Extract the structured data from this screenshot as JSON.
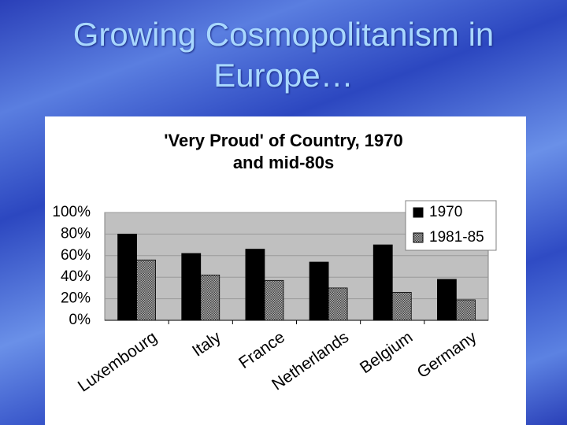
{
  "slide_title": "Growing Cosmopolitanism in Europe…",
  "chart_data": {
    "type": "bar",
    "title": "'Very Proud' of Country, 1970 and mid-80s",
    "categories": [
      "Luxembourg",
      "Italy",
      "France",
      "Netherlands",
      "Belgium",
      "Germany"
    ],
    "series": [
      {
        "name": "1970",
        "color": "#000000",
        "values": [
          80,
          62,
          66,
          54,
          70,
          38
        ]
      },
      {
        "name": "1981-85",
        "color": "#808080",
        "values": [
          56,
          42,
          37,
          30,
          26,
          19
        ]
      }
    ],
    "ylim": [
      0,
      100
    ],
    "yticks": [
      {
        "value": 0,
        "label": "0%"
      },
      {
        "value": 20,
        "label": "20%"
      },
      {
        "value": 40,
        "label": "40%"
      },
      {
        "value": 60,
        "label": "60%"
      },
      {
        "value": 80,
        "label": "80%"
      },
      {
        "value": 100,
        "label": "100%"
      }
    ],
    "grid": true,
    "legend": "top-right"
  }
}
